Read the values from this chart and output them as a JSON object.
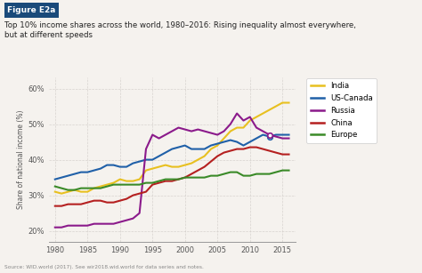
{
  "title_box": "Figure E2a",
  "title_line1": "Top 10% income shares across the world, 1980–2016: Rising inequality almost everywhere,",
  "title_line2": "but at different speeds",
  "ylabel": "Share of national income (%)",
  "source": "Source: WID.world (2017). See wir2018.wid.world for data series and notes.",
  "background_color": "#f5f2ee",
  "plot_bg": "#f5f2ee",
  "grid_color": "#d0ccc8",
  "title_box_color": "#1a4a7a",
  "title_box_text_color": "#ffffff",
  "series": {
    "India": {
      "color": "#e8c020",
      "years": [
        1980,
        1981,
        1982,
        1983,
        1984,
        1985,
        1986,
        1987,
        1988,
        1989,
        1990,
        1991,
        1992,
        1993,
        1994,
        1995,
        1996,
        1997,
        1998,
        1999,
        2000,
        2001,
        2002,
        2003,
        2004,
        2005,
        2006,
        2007,
        2008,
        2009,
        2010,
        2011,
        2012,
        2013,
        2014,
        2015,
        2016
      ],
      "values": [
        31,
        30.5,
        31,
        31.5,
        31,
        31,
        32,
        32.5,
        33,
        33.5,
        34.5,
        34,
        34,
        34.5,
        37,
        37.5,
        38,
        38.5,
        38,
        38,
        38.5,
        39,
        40,
        41,
        43,
        44,
        46,
        48,
        49,
        49,
        51,
        52,
        53,
        54,
        55,
        56,
        56
      ]
    },
    "US-Canada": {
      "color": "#2060a8",
      "years": [
        1980,
        1981,
        1982,
        1983,
        1984,
        1985,
        1986,
        1987,
        1988,
        1989,
        1990,
        1991,
        1992,
        1993,
        1994,
        1995,
        1996,
        1997,
        1998,
        1999,
        2000,
        2001,
        2002,
        2003,
        2004,
        2005,
        2006,
        2007,
        2008,
        2009,
        2010,
        2011,
        2012,
        2013,
        2014,
        2015,
        2016
      ],
      "values": [
        34.5,
        35,
        35.5,
        36,
        36.5,
        36.5,
        37,
        37.5,
        38.5,
        38.5,
        38,
        38,
        39,
        39.5,
        40,
        40,
        41,
        42,
        43,
        43.5,
        44,
        43,
        43,
        43,
        44,
        44.5,
        45,
        45.5,
        45,
        44,
        45,
        46,
        47,
        46.5,
        47,
        47,
        47
      ]
    },
    "Russia": {
      "color": "#8b1a8b",
      "years": [
        1980,
        1981,
        1982,
        1983,
        1984,
        1985,
        1986,
        1987,
        1988,
        1989,
        1990,
        1991,
        1992,
        1993,
        1994,
        1995,
        1996,
        1997,
        1998,
        1999,
        2000,
        2001,
        2002,
        2003,
        2004,
        2005,
        2006,
        2007,
        2008,
        2009,
        2010,
        2011,
        2012,
        2013,
        2014,
        2015,
        2016
      ],
      "values": [
        21,
        21,
        21.5,
        21.5,
        21.5,
        21.5,
        22,
        22,
        22,
        22,
        22.5,
        23,
        23.5,
        25,
        43,
        47,
        46,
        47,
        48,
        49,
        48.5,
        48,
        48.5,
        48,
        47.5,
        47,
        48,
        50,
        53,
        51,
        52,
        49,
        48,
        47,
        46.5,
        46,
        46
      ]
    },
    "China": {
      "color": "#b52020",
      "years": [
        1980,
        1981,
        1982,
        1983,
        1984,
        1985,
        1986,
        1987,
        1988,
        1989,
        1990,
        1991,
        1992,
        1993,
        1994,
        1995,
        1996,
        1997,
        1998,
        1999,
        2000,
        2001,
        2002,
        2003,
        2004,
        2005,
        2006,
        2007,
        2008,
        2009,
        2010,
        2011,
        2012,
        2013,
        2014,
        2015,
        2016
      ],
      "values": [
        27,
        27,
        27.5,
        27.5,
        27.5,
        28,
        28.5,
        28.5,
        28,
        28,
        28.5,
        29,
        30,
        30.5,
        31,
        33,
        33.5,
        34,
        34,
        34.5,
        35,
        36,
        37,
        38,
        39.5,
        41,
        42,
        42.5,
        43,
        43,
        43.5,
        43.5,
        43,
        42.5,
        42,
        41.5,
        41.5
      ]
    },
    "Europe": {
      "color": "#3a8a28",
      "years": [
        1980,
        1981,
        1982,
        1983,
        1984,
        1985,
        1986,
        1987,
        1988,
        1989,
        1990,
        1991,
        1992,
        1993,
        1994,
        1995,
        1996,
        1997,
        1998,
        1999,
        2000,
        2001,
        2002,
        2003,
        2004,
        2005,
        2006,
        2007,
        2008,
        2009,
        2010,
        2011,
        2012,
        2013,
        2014,
        2015,
        2016
      ],
      "values": [
        32.5,
        32,
        31.5,
        31.5,
        32,
        32,
        32,
        32,
        32.5,
        33,
        33,
        33,
        33,
        33,
        33.5,
        33.5,
        34,
        34.5,
        34.5,
        34.5,
        35,
        35,
        35,
        35,
        35.5,
        35.5,
        36,
        36.5,
        36.5,
        35.5,
        35.5,
        36,
        36,
        36,
        36.5,
        37,
        37
      ]
    }
  },
  "legend_order": [
    "India",
    "US-Canada",
    "Russia",
    "China",
    "Europe"
  ],
  "ylim": [
    17,
    63
  ],
  "yticks": [
    20,
    30,
    40,
    50,
    60
  ],
  "ytick_labels": [
    "20%",
    "30%",
    "40%",
    "50%",
    "60%"
  ],
  "xlim": [
    1979,
    2017
  ],
  "xticks": [
    1980,
    1985,
    1990,
    1995,
    2000,
    2005,
    2010,
    2015
  ],
  "marker_year": 2013,
  "us_canada_marker_val": 46.5,
  "russia_marker_val": 47.0
}
